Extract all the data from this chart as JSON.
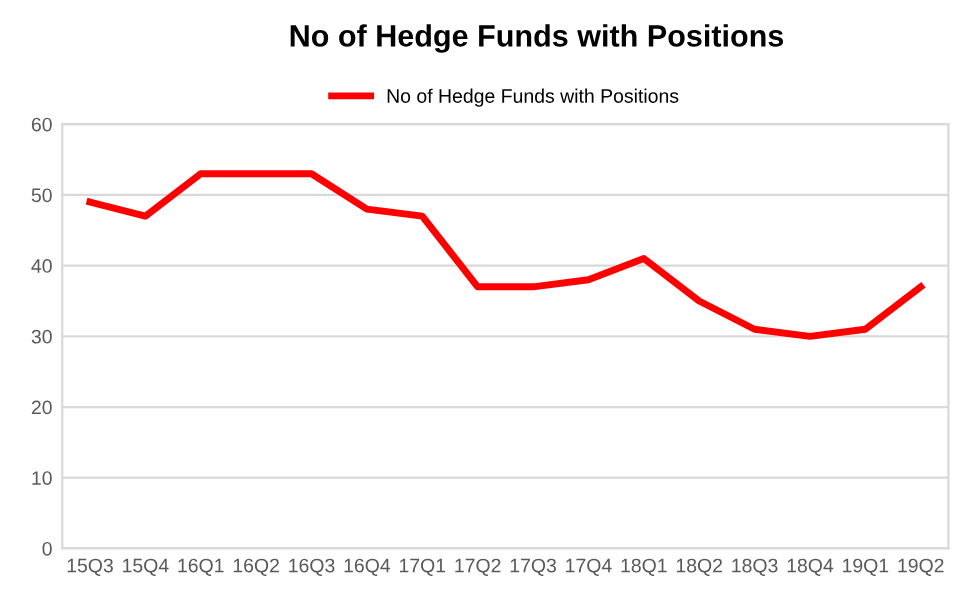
{
  "chart_data": {
    "type": "line",
    "title": "No of Hedge Funds with Positions",
    "categories": [
      "15Q3",
      "15Q4",
      "16Q1",
      "16Q2",
      "16Q3",
      "16Q4",
      "17Q1",
      "17Q2",
      "17Q3",
      "17Q4",
      "18Q1",
      "18Q2",
      "18Q3",
      "18Q4",
      "19Q1",
      "19Q2"
    ],
    "series": [
      {
        "name": "No of Hedge Funds with Positions",
        "color": "#ff0000",
        "values": [
          49,
          47,
          53,
          53,
          53,
          48,
          47,
          37,
          37,
          38,
          41,
          35,
          31,
          30,
          31,
          37
        ]
      }
    ],
    "ylim": [
      0,
      60
    ],
    "yticks": [
      0,
      10,
      20,
      30,
      40,
      50,
      60
    ],
    "grid": "y",
    "legend": "top",
    "marker": "none",
    "line_style": "solid"
  }
}
